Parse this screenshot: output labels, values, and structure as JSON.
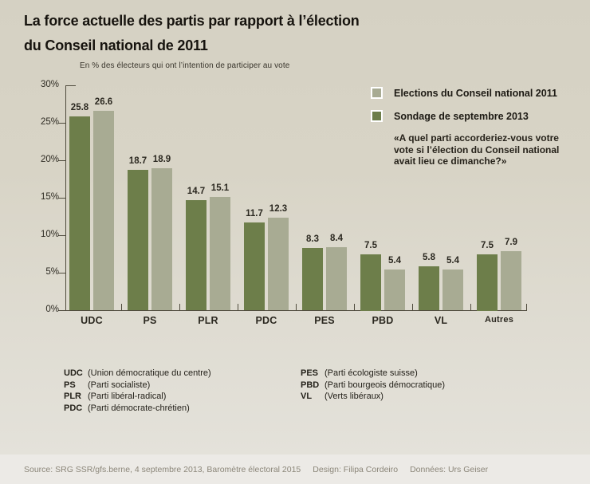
{
  "title": {
    "line1": "La force actuelle des partis par rapport à l’élection",
    "line2": "du Conseil national de 2011"
  },
  "subtitle": "En % des électeurs qui ont l’intention de participer au vote",
  "legend": {
    "items": [
      {
        "label": "Elections du Conseil national 2011",
        "color": "#a8ab93"
      },
      {
        "label": "Sondage de septembre 2013",
        "color": "#6d7e4a"
      }
    ],
    "question": "«A quel parti accorderiez-vous votre vote si l’élection du Conseil national avait lieu ce dimanche?»"
  },
  "chart_data": {
    "type": "bar",
    "title": "La force actuelle des partis par rapport à l’élection du Conseil national de 2011",
    "ylabel": "En % des électeurs qui ont l’intention de participer au vote",
    "categories": [
      "UDC",
      "PS",
      "PLR",
      "PDC",
      "PES",
      "PBD",
      "VL",
      "Autres"
    ],
    "series": [
      {
        "name": "Sondage de septembre 2013",
        "bar": "left",
        "color": "#6d7e4a",
        "values": [
          25.8,
          18.7,
          14.7,
          11.7,
          8.3,
          7.5,
          5.8,
          7.5
        ]
      },
      {
        "name": "Elections du Conseil national 2011",
        "bar": "right",
        "color": "#a8ab93",
        "values": [
          26.6,
          18.9,
          15.1,
          12.3,
          8.4,
          5.4,
          5.4,
          7.9
        ]
      }
    ],
    "ylim": [
      0,
      30
    ],
    "yticks": [
      "0%",
      "5%",
      "10%",
      "15%",
      "20%",
      "25%",
      "30%"
    ],
    "grid": false,
    "legend_position": "top-right",
    "axis_color": "#4f4b3d"
  },
  "glossary": {
    "left": [
      {
        "abbr": "UDC",
        "name": "(Union démocratique du centre)"
      },
      {
        "abbr": "PS",
        "name": "(Parti socialiste)"
      },
      {
        "abbr": "PLR",
        "name": "(Parti libéral-radical)"
      },
      {
        "abbr": "PDC",
        "name": "(Parti démocrate-chrétien)"
      }
    ],
    "right": [
      {
        "abbr": "PES",
        "name": "(Parti écologiste suisse)"
      },
      {
        "abbr": "PBD",
        "name": "(Parti bourgeois démocratique)"
      },
      {
        "abbr": "VL",
        "name": "(Verts libéraux)"
      }
    ]
  },
  "footer": {
    "source": "Source: SRG SSR/gfs.berne, 4 septembre 2013, Baromètre électoral 2015",
    "design": "Design: Filipa Cordeiro",
    "data": "Données: Urs Geiser"
  }
}
